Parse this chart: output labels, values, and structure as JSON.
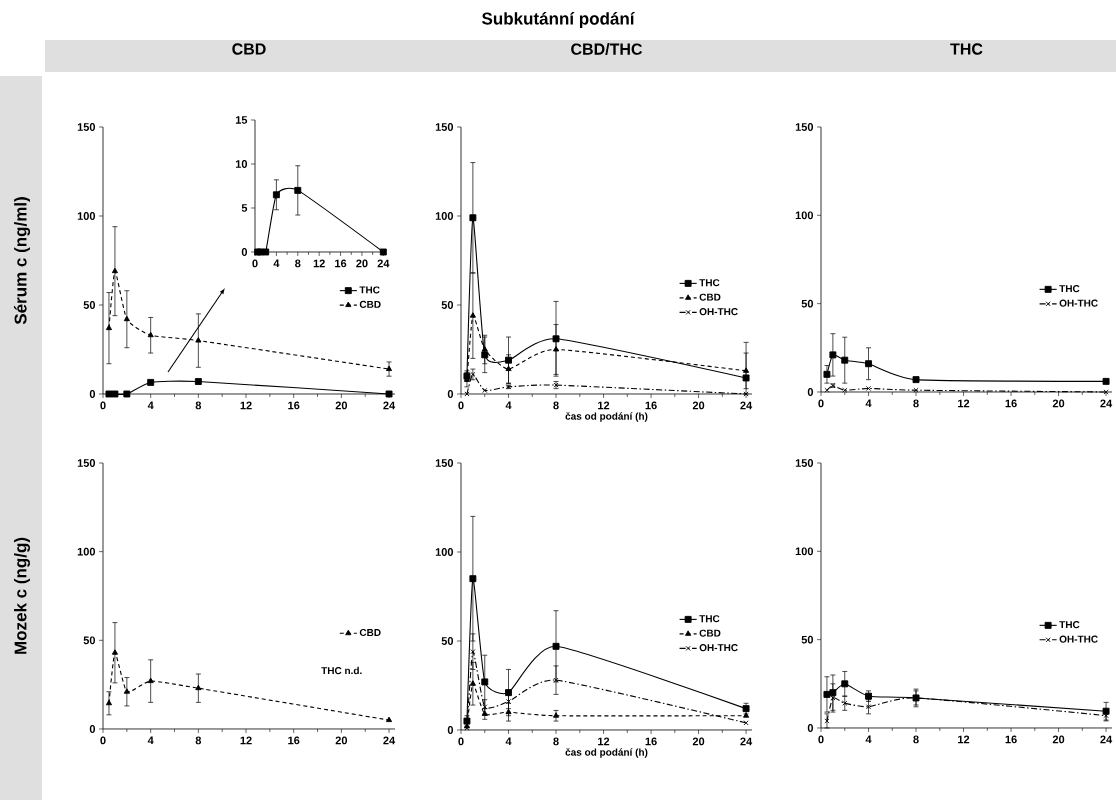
{
  "chart_data": [
    {
      "type": "other",
      "title": "Subkutánní podání"
    },
    {
      "type": "line",
      "title": "CBD",
      "ylabel": "Sérum c (ng/ml)",
      "x": [
        0.5,
        1,
        2,
        4,
        8,
        24
      ],
      "xlim": [
        0,
        24.5
      ],
      "xticks": [
        0,
        4,
        8,
        12,
        16,
        20,
        24
      ],
      "ylim": [
        0,
        150
      ],
      "yticks": [
        0,
        50,
        100,
        150
      ],
      "legend": "right",
      "series": [
        {
          "name": "THC",
          "color": "#000000",
          "marker": "square",
          "line_style": "solid",
          "values": [
            0,
            0,
            0,
            6.5,
            7,
            0
          ],
          "errors": [
            null,
            null,
            null,
            null,
            null,
            null
          ]
        },
        {
          "name": "CBD",
          "color": "#000000",
          "marker": "triangle",
          "line_style": "dashed",
          "values": [
            37,
            69,
            42,
            33,
            30,
            14
          ],
          "errors": [
            20,
            25,
            16,
            10,
            15,
            4
          ]
        }
      ]
    },
    {
      "type": "line",
      "x": [
        0.5,
        1,
        2,
        4,
        8,
        24
      ],
      "xlim": [
        0,
        24.5
      ],
      "xticks": [
        0,
        4,
        8,
        12,
        16,
        20,
        24
      ],
      "ylim": [
        0,
        15
      ],
      "yticks": [
        0,
        5,
        10,
        15
      ],
      "series": [
        {
          "color": "#000000",
          "marker": "square",
          "line_style": "solid",
          "values": [
            0,
            0,
            0,
            6.5,
            7,
            0
          ],
          "errors": [
            null,
            null,
            null,
            1.7,
            2.8,
            null
          ]
        }
      ]
    },
    {
      "type": "line",
      "title": "CBD/THC",
      "xlabel": "čas od podání (h)",
      "x": [
        0.5,
        1,
        2,
        4,
        8,
        24
      ],
      "xlim": [
        0,
        24.5
      ],
      "xticks": [
        0,
        4,
        8,
        12,
        16,
        20,
        24
      ],
      "ylim": [
        0,
        150
      ],
      "yticks": [
        0,
        50,
        100,
        150
      ],
      "legend": "right",
      "series": [
        {
          "name": "THC",
          "color": "#000000",
          "marker": "square",
          "line_style": "solid",
          "values": [
            10,
            99,
            22,
            19,
            31,
            9
          ],
          "errors": [
            3,
            31,
            10,
            13,
            21,
            [
              0,
              29
            ]
          ]
        },
        {
          "name": "CBD",
          "color": "#000000",
          "marker": "triangle",
          "line_style": "dashed",
          "values": [
            8,
            44,
            25,
            14,
            25,
            13
          ],
          "errors": [
            4,
            24,
            8,
            8,
            14,
            10
          ]
        },
        {
          "name": "OH-THC",
          "color": "#000000",
          "marker": "cross",
          "line_style": "dashdot",
          "values": [
            0,
            11,
            2,
            4,
            5,
            0
          ],
          "errors": [
            null,
            3,
            null,
            1,
            2,
            null
          ]
        }
      ]
    },
    {
      "type": "line",
      "title": "THC",
      "x": [
        0.5,
        1,
        2,
        4,
        8,
        24
      ],
      "xlim": [
        0,
        24.5
      ],
      "xticks": [
        0,
        4,
        8,
        12,
        16,
        20,
        24
      ],
      "ylim": [
        0,
        150
      ],
      "yticks": [
        0,
        50,
        100,
        150
      ],
      "legend": "right",
      "series": [
        {
          "name": "THC",
          "color": "#000000",
          "marker": "square",
          "line_style": "solid",
          "values": [
            10,
            21,
            18,
            16,
            7,
            6
          ],
          "errors": [
            5,
            12,
            13,
            9,
            null,
            null
          ]
        },
        {
          "name": "OH-THC",
          "color": "#000000",
          "marker": "cross",
          "line_style": "dashdot",
          "values": [
            1,
            3.6,
            1,
            2,
            1,
            0
          ],
          "errors": [
            null,
            1,
            null,
            null,
            null,
            null
          ]
        }
      ]
    },
    {
      "type": "line",
      "ylabel": "Mozek c (ng/g)",
      "x": [
        0.5,
        1,
        2,
        4,
        8,
        24
      ],
      "xlim": [
        0,
        24.5
      ],
      "xticks": [
        0,
        4,
        8,
        12,
        16,
        20,
        24
      ],
      "ylim": [
        0,
        150
      ],
      "yticks": [
        0,
        50,
        100,
        150
      ],
      "legend": "right",
      "annotations": [
        "THC n.d."
      ],
      "series": [
        {
          "name": "CBD",
          "color": "#000000",
          "marker": "triangle",
          "line_style": "dashed",
          "values": [
            14.5,
            43,
            21,
            27,
            23,
            5
          ],
          "errors": [
            6.5,
            17,
            8,
            12,
            8,
            null
          ]
        }
      ]
    },
    {
      "type": "line",
      "xlabel": "čas od podání (h)",
      "x": [
        0.5,
        1,
        2,
        4,
        8,
        24
      ],
      "xlim": [
        0,
        24.5
      ],
      "xticks": [
        0,
        4,
        8,
        12,
        16,
        20,
        24
      ],
      "ylim": [
        0,
        150
      ],
      "yticks": [
        0,
        50,
        100,
        150
      ],
      "legend": "right",
      "series": [
        {
          "name": "THC",
          "color": "#000000",
          "marker": "square",
          "line_style": "solid",
          "values": [
            5,
            85,
            27,
            21,
            47,
            12
          ],
          "errors": [
            3,
            35,
            15,
            13,
            20,
            3
          ]
        },
        {
          "name": "CBD",
          "color": "#000000",
          "marker": "triangle",
          "line_style": "dashed",
          "values": [
            2,
            26,
            9,
            10,
            8,
            8
          ],
          "errors": [
            null,
            12,
            3,
            5,
            3,
            null
          ]
        },
        {
          "name": "OH-THC",
          "color": "#000000",
          "marker": "cross",
          "line_style": "dashdot",
          "values": [
            1,
            44,
            13,
            16,
            28,
            4
          ],
          "errors": [
            null,
            10,
            4,
            4,
            8,
            null
          ]
        }
      ]
    },
    {
      "type": "line",
      "x": [
        0.5,
        1,
        2,
        4,
        8,
        24
      ],
      "xlim": [
        0,
        24.5
      ],
      "xticks": [
        0,
        4,
        8,
        12,
        16,
        20,
        24
      ],
      "ylim": [
        0,
        150
      ],
      "yticks": [
        0,
        50,
        100,
        150
      ],
      "legend": "right",
      "series": [
        {
          "name": "THC",
          "color": "#000000",
          "marker": "square",
          "line_style": "solid",
          "values": [
            19,
            20,
            25,
            18,
            17,
            9.5
          ],
          "errors": [
            10,
            10,
            7,
            3,
            5,
            5
          ]
        },
        {
          "name": "OH-THC",
          "color": "#000000",
          "marker": "cross",
          "line_style": "dashdot",
          "values": [
            4,
            17,
            14,
            12,
            17,
            7
          ],
          "errors": [
            4,
            8,
            4,
            4,
            4,
            3
          ]
        }
      ]
    }
  ]
}
